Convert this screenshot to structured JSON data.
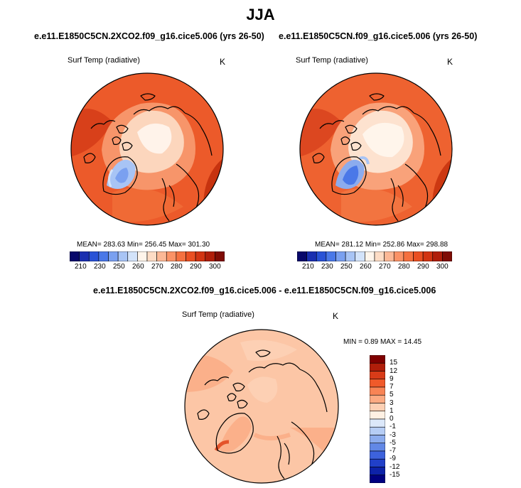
{
  "page": {
    "season_title": "JJA"
  },
  "chart_data": [
    {
      "type": "heatmap",
      "title": "e.e11.E1850C5CN.2XCO2.f09_g16.cice5.006 (yrs 26-50)",
      "variable": "Surf Temp (radiative)",
      "units": "K",
      "projection": "polar stereographic (north)",
      "stats_text": "MEAN= 283.63  Min= 256.45  Max= 301.30",
      "stats": {
        "mean": 283.63,
        "min": 256.45,
        "max": 301.3
      },
      "colorbar": {
        "orientation": "horizontal",
        "ticks": [
          "210",
          "230",
          "250",
          "260",
          "270",
          "280",
          "290",
          "300"
        ],
        "colors": [
          "#08086b",
          "#1a2fb0",
          "#2952d6",
          "#4a78e8",
          "#7aa0f0",
          "#a8c4f5",
          "#d3e3fa",
          "#fff5eb",
          "#fddcc5",
          "#fcb896",
          "#fb9266",
          "#f5703f",
          "#ea4f22",
          "#d23412",
          "#b01e0a",
          "#7f0c05"
        ]
      }
    },
    {
      "type": "heatmap",
      "title": "e.e11.E1850C5CN.f09_g16.cice5.006 (yrs 26-50)",
      "variable": "Surf Temp (radiative)",
      "units": "K",
      "projection": "polar stereographic (north)",
      "stats_text": "MEAN= 281.12  Min= 252.86  Max= 298.88",
      "stats": {
        "mean": 281.12,
        "min": 252.86,
        "max": 298.88
      },
      "colorbar": {
        "orientation": "horizontal",
        "ticks": [
          "210",
          "230",
          "250",
          "260",
          "270",
          "280",
          "290",
          "300"
        ],
        "colors": [
          "#08086b",
          "#1a2fb0",
          "#2952d6",
          "#4a78e8",
          "#7aa0f0",
          "#a8c4f5",
          "#d3e3fa",
          "#fff5eb",
          "#fddcc5",
          "#fcb896",
          "#fb9266",
          "#f5703f",
          "#ea4f22",
          "#d23412",
          "#b01e0a",
          "#7f0c05"
        ]
      }
    },
    {
      "type": "heatmap",
      "title": "e.e11.E1850C5CN.2XCO2.f09_g16.cice5.006 - e.e11.E1850C5CN.f09_g16.cice5.006",
      "variable": "Surf Temp (radiative)",
      "units": "K",
      "projection": "polar stereographic (north)",
      "stats_text": "MIN =   0.89 MAX =  14.45",
      "stats": {
        "min": 0.89,
        "max": 14.45
      },
      "colorbar": {
        "orientation": "vertical",
        "ticks": [
          "15",
          "12",
          "9",
          "7",
          "5",
          "3",
          "1",
          "0",
          "-1",
          "-3",
          "-5",
          "-7",
          "-9",
          "-12",
          "-15"
        ],
        "colors": [
          "#7f0000",
          "#b01e0a",
          "#d83b18",
          "#f05a2a",
          "#f88455",
          "#fcaa82",
          "#fdd0b4",
          "#fff1e4",
          "#dce8fa",
          "#b6cdf5",
          "#8cacee",
          "#6288e6",
          "#3d62dc",
          "#2140c8",
          "#0d22a8",
          "#000080"
        ]
      }
    }
  ]
}
